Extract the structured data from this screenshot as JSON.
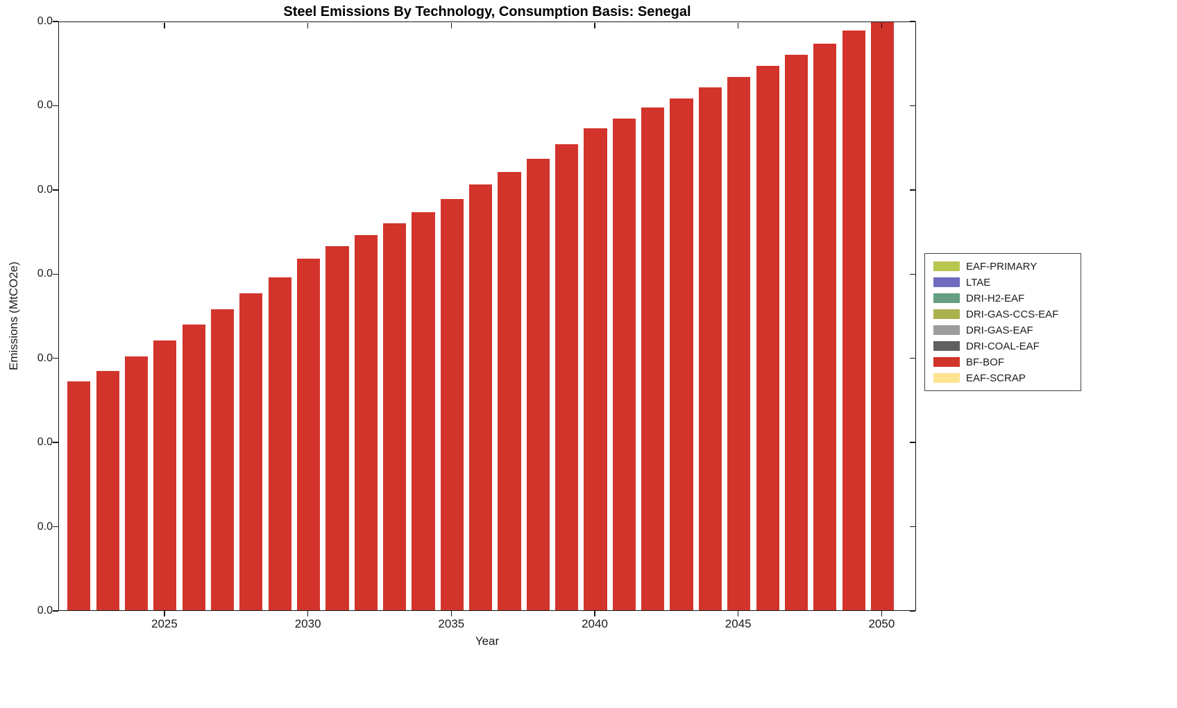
{
  "chart_data": {
    "type": "bar",
    "title": "Steel Emissions By Technology, Consumption Basis: Senegal",
    "xlabel": "Year",
    "ylabel": "Emissions (MtCO2e)",
    "grid": false,
    "legend_position": "right-outside",
    "x": [
      2022,
      2023,
      2024,
      2025,
      2026,
      2027,
      2028,
      2029,
      2030,
      2031,
      2032,
      2033,
      2034,
      2035,
      2036,
      2037,
      2038,
      2039,
      2040,
      2041,
      2042,
      2043,
      2044,
      2045,
      2046,
      2047,
      2048,
      2049,
      2050
    ],
    "series": [
      {
        "name": "BF-BOF",
        "color": "#d2342b",
        "values": [
          0.388,
          0.406,
          0.431,
          0.458,
          0.485,
          0.511,
          0.538,
          0.565,
          0.596,
          0.618,
          0.636,
          0.656,
          0.675,
          0.698,
          0.722,
          0.744,
          0.766,
          0.791,
          0.818,
          0.834,
          0.853,
          0.868,
          0.887,
          0.905,
          0.924,
          0.942,
          0.961,
          0.984,
          1.005
        ]
      }
    ],
    "y_value_note": "Every y-axis tick label displays 0.0 (values are below 0.05 MtCO2e at the displayed precision); series values are expressed as fractions of the visible y-axis height.",
    "ylim_display": [
      0,
      1
    ],
    "x_ticks": [
      2025,
      2030,
      2035,
      2040,
      2045,
      2050
    ],
    "y_tick_labels": [
      "0.0",
      "0.0",
      "0.0",
      "0.0",
      "0.0",
      "0.0",
      "0.0",
      "0.0"
    ],
    "legend": [
      {
        "label": "EAF-PRIMARY",
        "color": "#b8c64f"
      },
      {
        "label": "LTAE",
        "color": "#6f6bbf"
      },
      {
        "label": "DRI-H2-EAF",
        "color": "#679d82"
      },
      {
        "label": "DRI-GAS-CCS-EAF",
        "color": "#aab24e"
      },
      {
        "label": "DRI-GAS-EAF",
        "color": "#9c9c9c"
      },
      {
        "label": "DRI-COAL-EAF",
        "color": "#606060"
      },
      {
        "label": "BF-BOF",
        "color": "#d2342b"
      },
      {
        "label": "EAF-SCRAP",
        "color": "#ffe492"
      }
    ]
  }
}
